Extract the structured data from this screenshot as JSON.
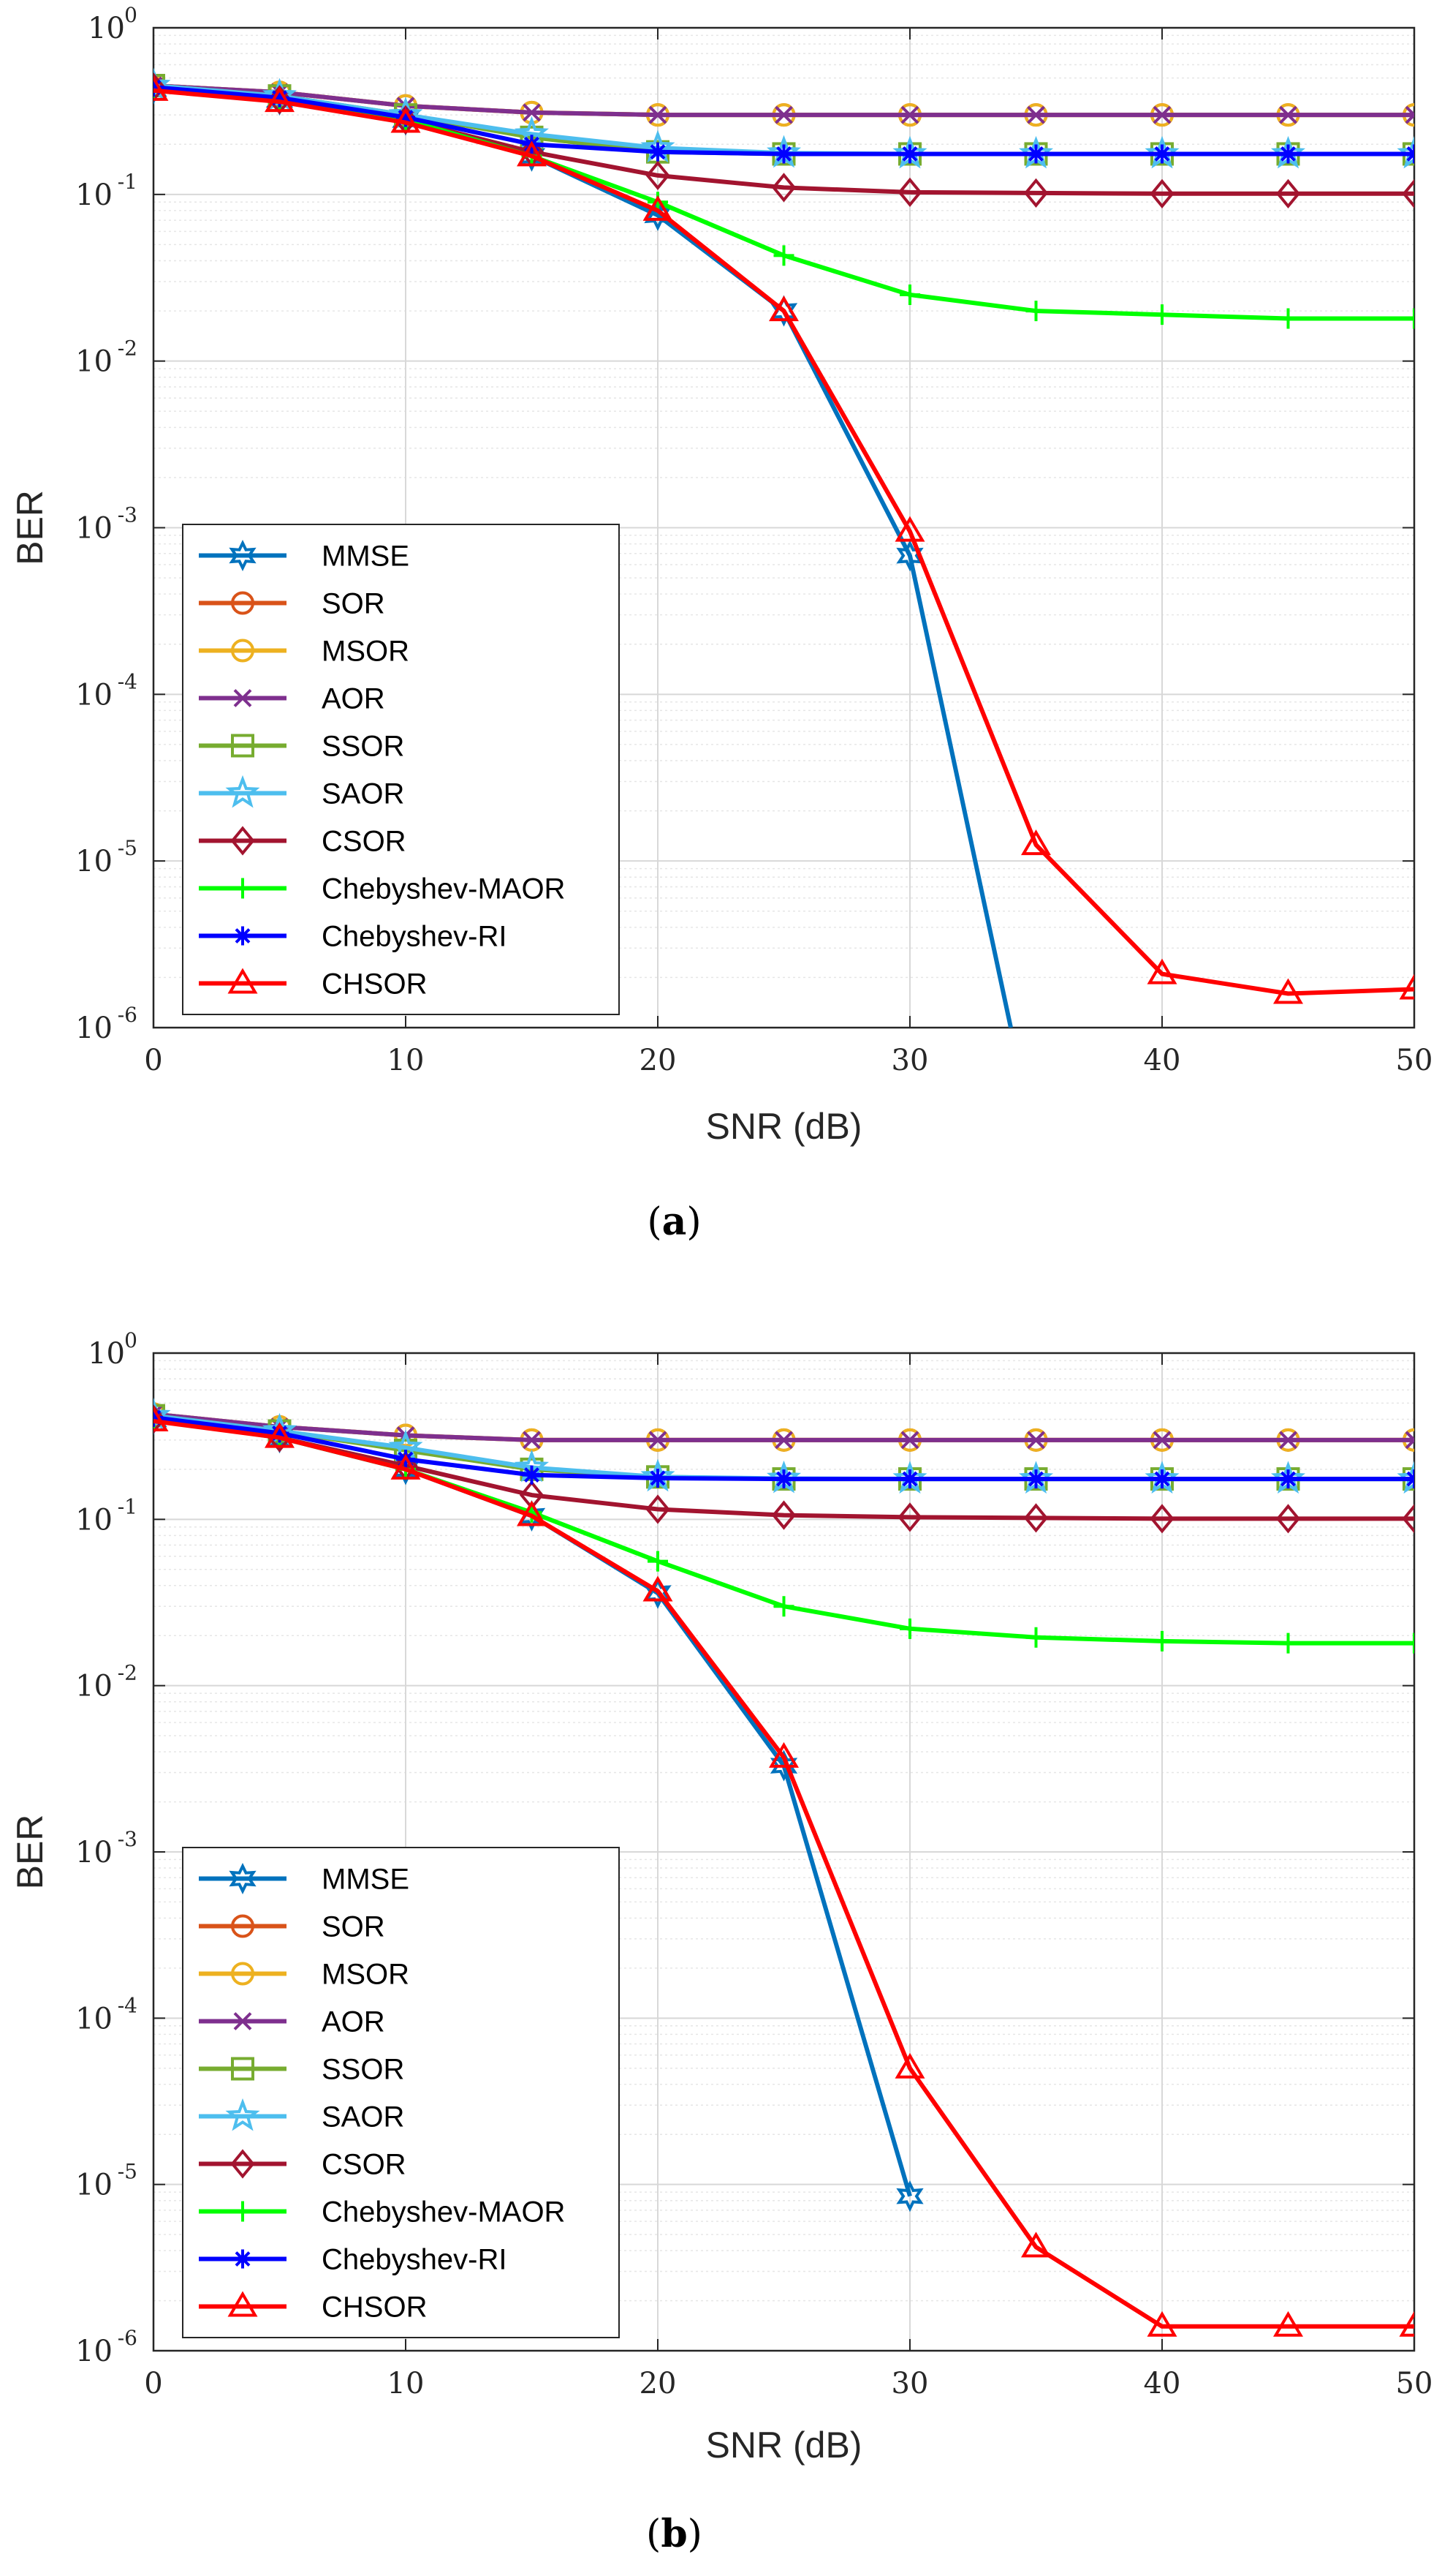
{
  "chart_data": [
    {
      "type": "line",
      "caption": "a",
      "xlabel": "SNR (dB)",
      "ylabel": "BER",
      "yscale": "log",
      "xlim": [
        0,
        50
      ],
      "ylim": [
        1e-06,
        1
      ],
      "xticks": [
        "0",
        "10",
        "20",
        "30",
        "40",
        "50"
      ],
      "yticks": [
        "-6",
        "-5",
        "-4",
        "-3",
        "-2",
        "-1",
        "0"
      ],
      "ytick_base": "10",
      "grid": true,
      "legend_position": "lower-left",
      "x": [
        0,
        5,
        10,
        15,
        20,
        25,
        30,
        35,
        40,
        45,
        50
      ],
      "series": [
        {
          "name": "MMSE",
          "color": "#0072BD",
          "marker": "hexagram",
          "x": [
            0,
            5,
            10,
            15,
            20,
            25,
            30,
            34
          ],
          "values": [
            0.43,
            0.37,
            0.28,
            0.17,
            0.075,
            0.02,
            0.00068,
            1e-06
          ]
        },
        {
          "name": "SOR",
          "color": "#D95319",
          "marker": "circle",
          "values": [
            0.45,
            0.41,
            0.34,
            0.31,
            0.3,
            0.3,
            0.3,
            0.3,
            0.3,
            0.3,
            0.3
          ]
        },
        {
          "name": "MSOR",
          "color": "#EDB120",
          "marker": "circle",
          "values": [
            0.45,
            0.41,
            0.34,
            0.31,
            0.3,
            0.3,
            0.3,
            0.3,
            0.3,
            0.3,
            0.3
          ]
        },
        {
          "name": "AOR",
          "color": "#7E2F8E",
          "marker": "x",
          "values": [
            0.45,
            0.41,
            0.34,
            0.31,
            0.3,
            0.3,
            0.3,
            0.3,
            0.3,
            0.3,
            0.3
          ]
        },
        {
          "name": "SSOR",
          "color": "#77AC30",
          "marker": "square",
          "values": [
            0.45,
            0.39,
            0.3,
            0.22,
            0.18,
            0.175,
            0.175,
            0.175,
            0.175,
            0.175,
            0.175
          ]
        },
        {
          "name": "SAOR",
          "color": "#4DBEEE",
          "marker": "pentagram",
          "values": [
            0.45,
            0.39,
            0.3,
            0.23,
            0.19,
            0.177,
            0.175,
            0.175,
            0.175,
            0.175,
            0.175
          ]
        },
        {
          "name": "CSOR",
          "color": "#A2142F",
          "marker": "diamond",
          "values": [
            0.44,
            0.37,
            0.28,
            0.18,
            0.13,
            0.11,
            0.103,
            0.102,
            0.101,
            0.101,
            0.101
          ]
        },
        {
          "name": "Chebyshev-MAOR",
          "color": "#00FF00",
          "marker": "plus",
          "values": [
            0.43,
            0.37,
            0.28,
            0.17,
            0.09,
            0.043,
            0.025,
            0.02,
            0.019,
            0.018,
            0.018
          ]
        },
        {
          "name": "Chebyshev-RI",
          "color": "#0000FF",
          "marker": "asterisk",
          "values": [
            0.44,
            0.38,
            0.29,
            0.2,
            0.18,
            0.175,
            0.175,
            0.175,
            0.175,
            0.175,
            0.175
          ]
        },
        {
          "name": "CHSOR",
          "color": "#FF0000",
          "marker": "triangle",
          "values": [
            0.42,
            0.36,
            0.27,
            0.17,
            0.08,
            0.02,
            0.00095,
            1.25e-05,
            2.1e-06,
            1.6e-06,
            1.7e-06
          ]
        }
      ]
    },
    {
      "type": "line",
      "caption": "b",
      "xlabel": "SNR (dB)",
      "ylabel": "BER",
      "yscale": "log",
      "xlim": [
        0,
        50
      ],
      "ylim": [
        1e-06,
        1
      ],
      "xticks": [
        "0",
        "10",
        "20",
        "30",
        "40",
        "50"
      ],
      "yticks": [
        "-6",
        "-5",
        "-4",
        "-3",
        "-2",
        "-1",
        "0"
      ],
      "ytick_base": "10",
      "grid": true,
      "legend_position": "lower-left",
      "x": [
        0,
        5,
        10,
        15,
        20,
        25,
        30,
        35,
        40,
        45,
        50
      ],
      "series": [
        {
          "name": "MMSE",
          "color": "#0072BD",
          "marker": "hexagram",
          "x": [
            0,
            5,
            10,
            15,
            20,
            25,
            30
          ],
          "values": [
            0.4,
            0.31,
            0.2,
            0.105,
            0.036,
            0.0033,
            8.5e-06
          ]
        },
        {
          "name": "SOR",
          "color": "#D95319",
          "marker": "circle",
          "values": [
            0.43,
            0.36,
            0.32,
            0.3,
            0.3,
            0.3,
            0.3,
            0.3,
            0.3,
            0.3,
            0.3
          ]
        },
        {
          "name": "MSOR",
          "color": "#EDB120",
          "marker": "circle",
          "values": [
            0.43,
            0.36,
            0.32,
            0.3,
            0.3,
            0.3,
            0.3,
            0.3,
            0.3,
            0.3,
            0.3
          ]
        },
        {
          "name": "AOR",
          "color": "#7E2F8E",
          "marker": "x",
          "values": [
            0.43,
            0.36,
            0.32,
            0.3,
            0.3,
            0.3,
            0.3,
            0.3,
            0.3,
            0.3,
            0.3
          ]
        },
        {
          "name": "SSOR",
          "color": "#77AC30",
          "marker": "square",
          "values": [
            0.42,
            0.34,
            0.26,
            0.2,
            0.18,
            0.175,
            0.175,
            0.175,
            0.175,
            0.175,
            0.175
          ]
        },
        {
          "name": "SAOR",
          "color": "#4DBEEE",
          "marker": "pentagram",
          "values": [
            0.42,
            0.34,
            0.27,
            0.205,
            0.18,
            0.176,
            0.175,
            0.175,
            0.175,
            0.175,
            0.175
          ]
        },
        {
          "name": "CSOR",
          "color": "#A2142F",
          "marker": "diamond",
          "values": [
            0.4,
            0.31,
            0.21,
            0.14,
            0.115,
            0.106,
            0.103,
            0.102,
            0.101,
            0.101,
            0.101
          ]
        },
        {
          "name": "Chebyshev-MAOR",
          "color": "#00FF00",
          "marker": "plus",
          "values": [
            0.4,
            0.31,
            0.2,
            0.11,
            0.056,
            0.03,
            0.022,
            0.0195,
            0.0185,
            0.018,
            0.018
          ]
        },
        {
          "name": "Chebyshev-RI",
          "color": "#0000FF",
          "marker": "asterisk",
          "values": [
            0.41,
            0.33,
            0.23,
            0.185,
            0.177,
            0.175,
            0.175,
            0.175,
            0.175,
            0.175,
            0.175
          ]
        },
        {
          "name": "CHSOR",
          "color": "#FF0000",
          "marker": "triangle",
          "values": [
            0.39,
            0.31,
            0.2,
            0.105,
            0.037,
            0.0037,
            5e-05,
            4.2e-06,
            1.4e-06,
            1.4e-06,
            1.4e-06
          ]
        }
      ]
    }
  ]
}
